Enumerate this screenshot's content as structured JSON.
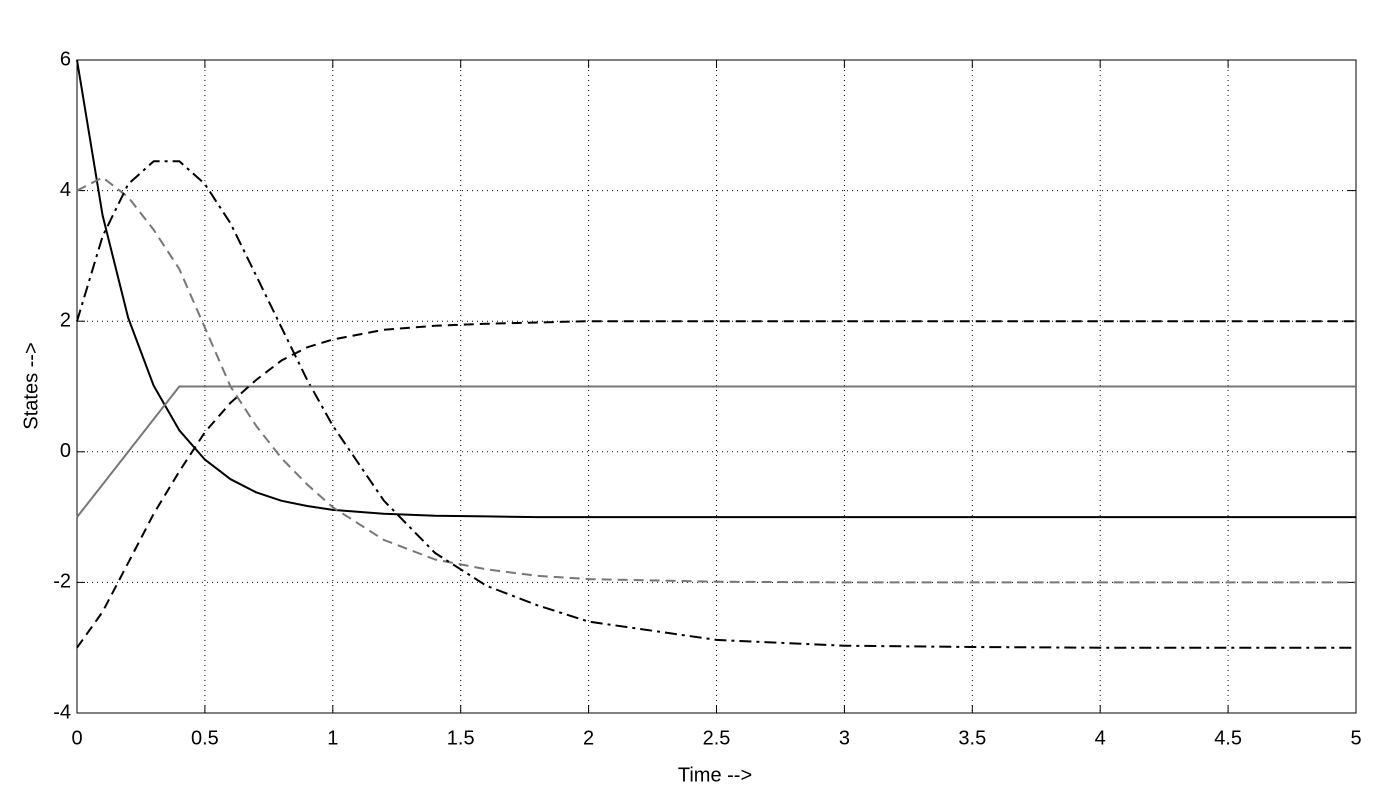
{
  "chart_data": {
    "type": "line",
    "x_label": "Time -->",
    "y_label": "States -->",
    "x": [
      0,
      0.1,
      0.2,
      0.3,
      0.4,
      0.5,
      0.6,
      0.7,
      0.8,
      0.9,
      1,
      1.2,
      1.4,
      1.6,
      1.8,
      2,
      2.5,
      3,
      3.5,
      4,
      4.5,
      5
    ],
    "series": [
      {
        "color": "#000000",
        "style": "solid",
        "values": [
          6,
          3.62,
          2.05,
          1.01,
          0.33,
          -0.12,
          -0.42,
          -0.62,
          -0.75,
          -0.83,
          -0.89,
          -0.95,
          -0.98,
          -0.99,
          -1,
          -1,
          -1,
          -1,
          -1,
          -1,
          -1,
          -1
        ]
      },
      {
        "color": "#777777",
        "style": "dashed",
        "values": [
          4,
          4.2,
          3.9,
          3.4,
          2.8,
          1.9,
          1.0,
          0.4,
          -0.1,
          -0.5,
          -0.85,
          -1.35,
          -1.65,
          -1.8,
          -1.9,
          -1.95,
          -1.99,
          -2,
          -2,
          -2,
          -2,
          -2
        ]
      },
      {
        "color": "#000000",
        "style": "dashdot",
        "values": [
          2,
          3.3,
          4.1,
          4.45,
          4.45,
          4.1,
          3.5,
          2.7,
          1.9,
          1.1,
          0.4,
          -0.75,
          -1.55,
          -2.05,
          -2.35,
          -2.6,
          -2.88,
          -2.97,
          -2.99,
          -3,
          -3,
          -3
        ]
      },
      {
        "color": "#777777",
        "style": "solid",
        "values": [
          -1,
          -0.5,
          0,
          0.5,
          1,
          1,
          1,
          1,
          1,
          1,
          1,
          1,
          1,
          1,
          1,
          1,
          1,
          1,
          1,
          1,
          1,
          1
        ]
      },
      {
        "color": "#000000",
        "style": "dashed",
        "values": [
          -3,
          -2.45,
          -1.7,
          -0.95,
          -0.3,
          0.3,
          0.75,
          1.1,
          1.4,
          1.6,
          1.72,
          1.87,
          1.93,
          1.96,
          1.98,
          2,
          2,
          2,
          2,
          2,
          2,
          2
        ]
      }
    ],
    "xlim": [
      0,
      5
    ],
    "xticks": [
      0,
      0.5,
      1,
      1.5,
      2,
      2.5,
      3,
      3.5,
      4,
      4.5,
      5
    ],
    "ylim": [
      -4,
      6
    ],
    "yticks": [
      -4,
      -2,
      0,
      2,
      4,
      6
    ],
    "grid": true
  }
}
